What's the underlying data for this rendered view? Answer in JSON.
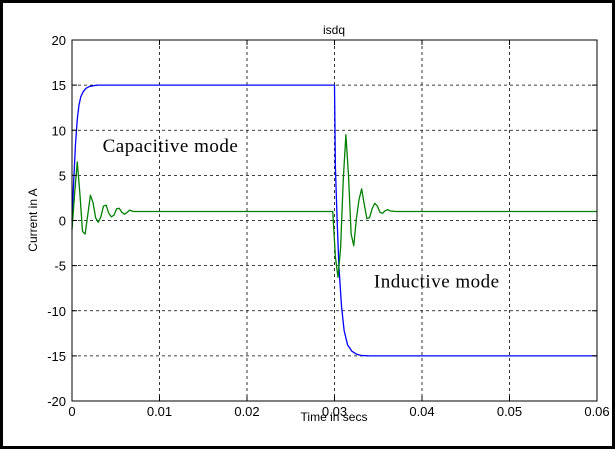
{
  "chart_data": {
    "type": "line",
    "title": "isdq",
    "xlabel": "Time in secs",
    "ylabel": "Current in A",
    "xlim": [
      0,
      0.06
    ],
    "ylim": [
      -20,
      20
    ],
    "xticks": [
      0,
      0.01,
      0.02,
      0.03,
      0.04,
      0.05,
      0.06
    ],
    "xtick_labels": [
      "0",
      "0.01",
      "0.02",
      "0.03",
      "0.04",
      "0.05",
      "0.06"
    ],
    "yticks": [
      20,
      15,
      10,
      5,
      0,
      -5,
      -10,
      -15,
      -20
    ],
    "ytick_labels": [
      "20",
      "15",
      "10",
      "5",
      "0",
      "-5",
      "-10",
      "-15",
      "-20"
    ],
    "grid": true,
    "annotations": [
      {
        "text": "Capacitive mode",
        "x": 0.0035,
        "y": 7.6
      },
      {
        "text": "Inductive mode",
        "x": 0.0345,
        "y": -7.4
      }
    ],
    "series": [
      {
        "color": "#0000ff",
        "x": [
          0,
          0.0002,
          0.0004,
          0.0006,
          0.0008,
          0.001,
          0.0013,
          0.0016,
          0.002,
          0.0025,
          0.003,
          0.004,
          0.01,
          0.02,
          0.0299,
          0.03,
          0.0301,
          0.0303,
          0.0305,
          0.0308,
          0.0311,
          0.0315,
          0.032,
          0.0325,
          0.033,
          0.034,
          0.04,
          0.05,
          0.06
        ],
        "y": [
          0,
          4.5,
          8.5,
          11.2,
          12.8,
          13.7,
          14.3,
          14.65,
          14.85,
          14.95,
          15,
          15,
          15,
          15,
          15,
          15,
          6,
          0,
          -5,
          -9.5,
          -12.2,
          -13.8,
          -14.5,
          -14.8,
          -14.95,
          -15,
          -15,
          -15,
          -15
        ]
      },
      {
        "color": "#008000",
        "x": [
          0,
          0.0003,
          0.0006,
          0.0009,
          0.0012,
          0.0015,
          0.0018,
          0.0021,
          0.0024,
          0.0027,
          0.003,
          0.0033,
          0.0036,
          0.0039,
          0.0042,
          0.0045,
          0.0048,
          0.0051,
          0.0054,
          0.0057,
          0.006,
          0.0063,
          0.0066,
          0.007,
          0.01,
          0.02,
          0.0298,
          0.0301,
          0.0304,
          0.0307,
          0.031,
          0.0313,
          0.0316,
          0.0319,
          0.0322,
          0.0325,
          0.0328,
          0.0331,
          0.0334,
          0.0337,
          0.034,
          0.0343,
          0.0346,
          0.0349,
          0.0352,
          0.0355,
          0.0358,
          0.0361,
          0.0364,
          0.037,
          0.04,
          0.05,
          0.06
        ],
        "y": [
          -1,
          3,
          6.5,
          3,
          -1.2,
          -1.5,
          0.6,
          2.8,
          2,
          0.3,
          -0.2,
          0.4,
          1.6,
          1.7,
          0.8,
          0.4,
          0.6,
          1.3,
          1.35,
          0.9,
          0.7,
          0.9,
          1.15,
          1,
          1,
          1,
          1,
          -4,
          -6.3,
          -3,
          4.5,
          9.5,
          5,
          -1.5,
          -2.8,
          0.2,
          2.3,
          3.5,
          1.8,
          0.2,
          0.3,
          1.3,
          1.9,
          1.6,
          0.9,
          0.8,
          1.1,
          1.2,
          1.05,
          1,
          1,
          1,
          1
        ]
      }
    ]
  }
}
